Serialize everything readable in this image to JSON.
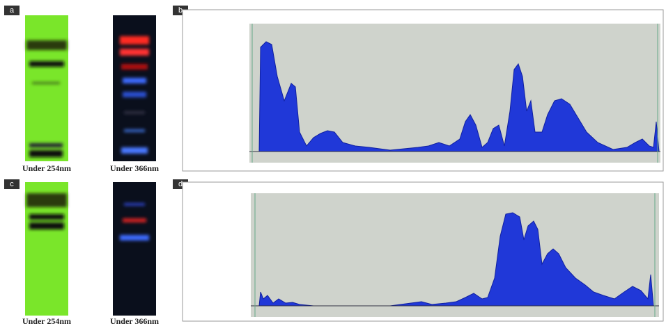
{
  "panels": [
    {
      "label": "a",
      "captions": [
        "Under 254nm",
        "Under 366nm"
      ]
    },
    {
      "label": "b"
    },
    {
      "label": "c",
      "captions": [
        "Under 254nm",
        "Under 366nm"
      ]
    },
    {
      "label": "d"
    }
  ]
}
